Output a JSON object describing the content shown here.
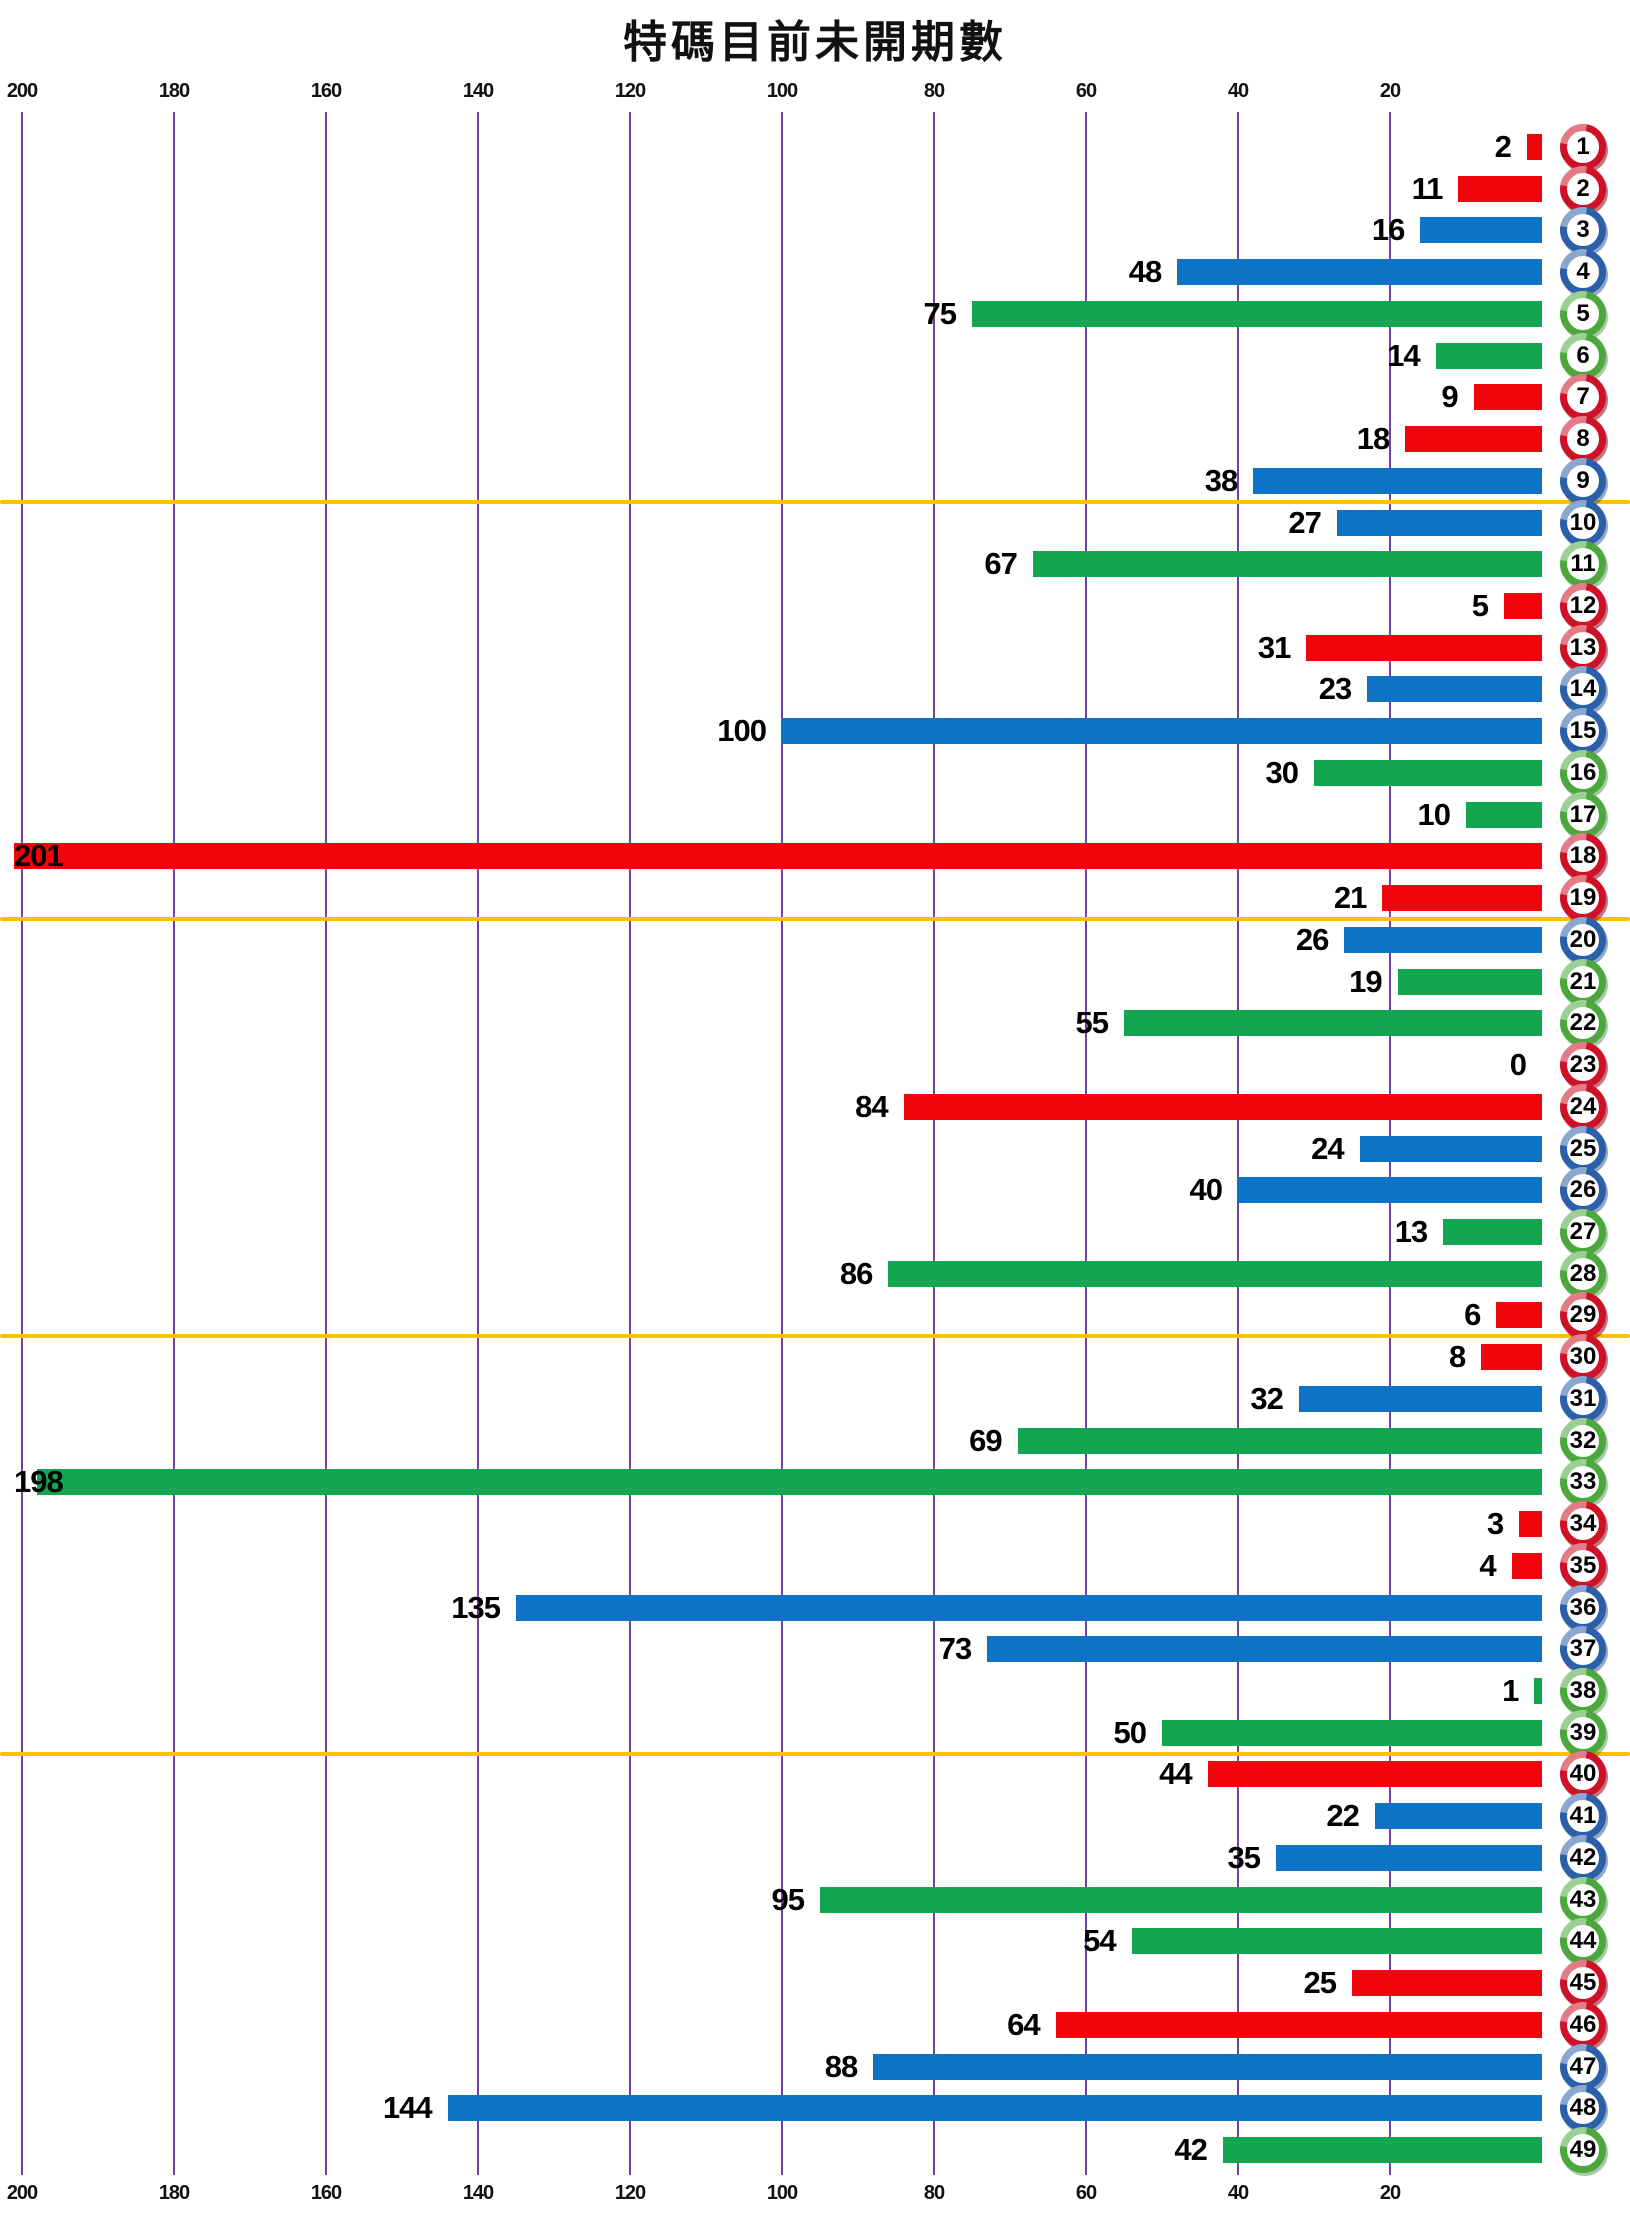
{
  "title": "特碼目前未開期數",
  "axis": {
    "ticks": [
      200,
      180,
      160,
      140,
      120,
      100,
      80,
      60,
      40,
      20
    ],
    "min": 0,
    "max": 200,
    "position": "top-and-bottom"
  },
  "separators_after_rows": [
    9,
    19,
    29,
    39
  ],
  "colors": {
    "bar_red": "#F2040C",
    "bar_blue": "#0E72C6",
    "bar_green": "#13A550",
    "ball_red_ring": "#CE1126",
    "ball_blue_ring": "#2B5FAA",
    "ball_green_ring": "#4CA83C",
    "gridline_purple": "#7A3DA8",
    "separator_yellow": "#FFC000",
    "value_label": "#000000"
  },
  "chart_data": {
    "type": "bar",
    "orientation": "horizontal-right-anchored",
    "title": "特碼目前未開期數",
    "xlabel": "",
    "ylabel": "",
    "xlim": [
      0,
      200
    ],
    "x_ticks": [
      200,
      180,
      160,
      140,
      120,
      100,
      80,
      60,
      40,
      20
    ],
    "grid": true,
    "legend": false,
    "categories": [
      1,
      2,
      3,
      4,
      5,
      6,
      7,
      8,
      9,
      10,
      11,
      12,
      13,
      14,
      15,
      16,
      17,
      18,
      19,
      20,
      21,
      22,
      23,
      24,
      25,
      26,
      27,
      28,
      29,
      30,
      31,
      32,
      33,
      34,
      35,
      36,
      37,
      38,
      39,
      40,
      41,
      42,
      43,
      44,
      45,
      46,
      47,
      48,
      49
    ],
    "values": [
      2,
      11,
      16,
      48,
      75,
      14,
      9,
      18,
      38,
      27,
      67,
      5,
      31,
      23,
      100,
      30,
      10,
      201,
      21,
      26,
      19,
      55,
      0,
      84,
      24,
      40,
      13,
      86,
      6,
      8,
      32,
      69,
      198,
      3,
      4,
      135,
      73,
      1,
      50,
      44,
      22,
      35,
      95,
      54,
      25,
      64,
      88,
      144,
      42
    ],
    "bar_colors": [
      "red",
      "red",
      "blue",
      "blue",
      "green",
      "green",
      "red",
      "red",
      "blue",
      "blue",
      "green",
      "red",
      "red",
      "blue",
      "blue",
      "green",
      "green",
      "red",
      "red",
      "blue",
      "green",
      "green",
      "red",
      "red",
      "blue",
      "blue",
      "green",
      "green",
      "red",
      "red",
      "blue",
      "green",
      "green",
      "red",
      "red",
      "blue",
      "blue",
      "green",
      "green",
      "red",
      "blue",
      "blue",
      "green",
      "green",
      "red",
      "red",
      "blue",
      "blue",
      "green"
    ]
  }
}
